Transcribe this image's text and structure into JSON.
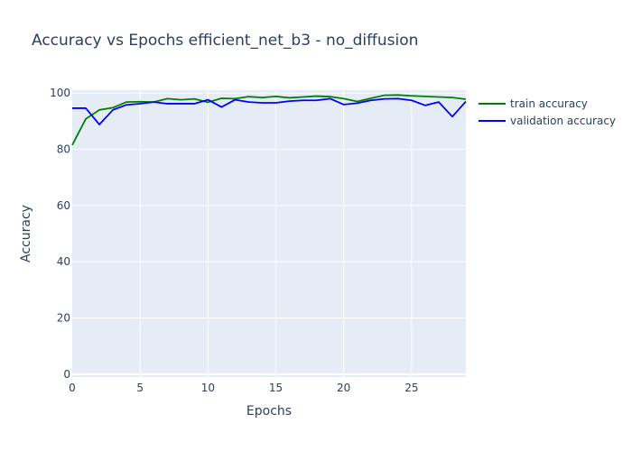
{
  "chart_data": {
    "type": "line",
    "title": "Accuracy vs Epochs efficient_net_b3 - no_diffusion",
    "xlabel": "Epochs",
    "ylabel": "Accuracy",
    "xlim": [
      0,
      29
    ],
    "ylim": [
      -1,
      101
    ],
    "x_ticks": [
      0,
      5,
      10,
      15,
      20,
      25
    ],
    "y_ticks": [
      0,
      20,
      40,
      60,
      80,
      100
    ],
    "grid": true,
    "legend_position": "right",
    "x": [
      0,
      1,
      2,
      3,
      4,
      5,
      6,
      7,
      8,
      9,
      10,
      11,
      12,
      13,
      14,
      15,
      16,
      17,
      18,
      19,
      20,
      21,
      22,
      23,
      24,
      25,
      26,
      27,
      28,
      29
    ],
    "series": [
      {
        "name": "train accuracy",
        "color": "#008000",
        "values": [
          81.5,
          90.8,
          94.0,
          94.8,
          96.8,
          96.9,
          96.8,
          98.0,
          97.6,
          97.9,
          96.7,
          98.1,
          98.0,
          98.7,
          98.4,
          98.8,
          98.3,
          98.6,
          98.9,
          98.7,
          98.0,
          97.0,
          98.1,
          99.2,
          99.3,
          99.0,
          98.8,
          98.6,
          98.4,
          97.8
        ]
      },
      {
        "name": "validation accuracy",
        "color": "#0000ff",
        "values": [
          94.6,
          94.6,
          88.8,
          94.0,
          95.8,
          96.2,
          96.8,
          96.2,
          96.2,
          96.2,
          97.6,
          95.0,
          97.6,
          96.8,
          96.5,
          96.5,
          97.1,
          97.4,
          97.4,
          98.0,
          95.9,
          96.4,
          97.4,
          97.9,
          98.0,
          97.4,
          95.6,
          96.8,
          91.6,
          97.0
        ]
      }
    ]
  }
}
